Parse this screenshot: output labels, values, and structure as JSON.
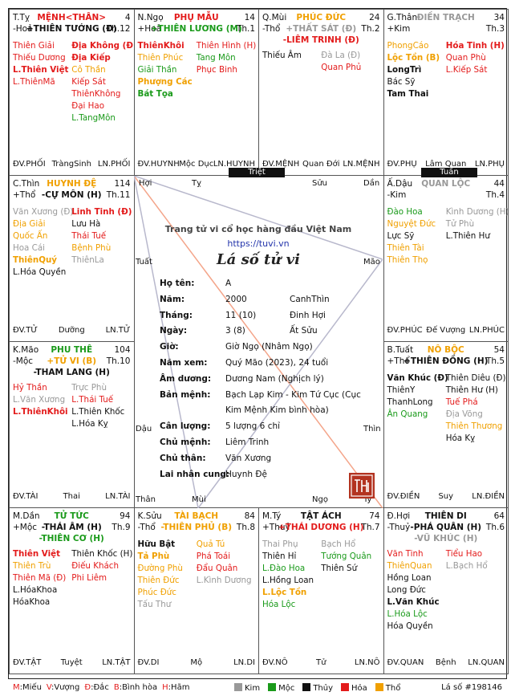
{
  "palaces": [
    {
      "id": "ty",
      "branch": "T.Tỵ",
      "name": "MỆNH<THÂN>",
      "name_color": "red",
      "age": "4",
      "elem": "-Hoả",
      "major": "+THIÊN TƯỚNG (Đ)",
      "major_color": "dark",
      "major2": "",
      "major2_color": "",
      "th": "Th.12",
      "left": [
        {
          "t": "Thiên Giải",
          "c": "red"
        },
        {
          "t": "Thiếu Dương",
          "c": "red"
        },
        {
          "t": "L.Thiên Việt",
          "c": "red",
          "b": true
        },
        {
          "t": "L.ThiênMã",
          "c": "red"
        }
      ],
      "right": [
        {
          "t": "Địa Không (Đ)",
          "c": "red",
          "b": true
        },
        {
          "t": "Địa Kiếp",
          "c": "red",
          "b": true
        },
        {
          "t": "Cô Thần",
          "c": "orange"
        },
        {
          "t": "Kiếp Sát",
          "c": "red"
        },
        {
          "t": "ThiênKhông",
          "c": "red"
        },
        {
          "t": "Đại Hao",
          "c": "red"
        },
        {
          "t": "L.TangMôn",
          "c": "green"
        }
      ],
      "foot_l": "ĐV.PHỐI",
      "foot_c": "TràngSinh",
      "foot_r": "LN.PHỐI"
    },
    {
      "id": "ngo",
      "branch": "N.Ngọ",
      "name": "PHỤ MẪU",
      "name_color": "red",
      "age": "14",
      "elem": "+Hoả",
      "major": "+THIÊN LƯƠNG (M)",
      "major_color": "green",
      "major2": "",
      "major2_color": "",
      "th": "Th.1",
      "left": [
        {
          "t": "ThiênKhôi",
          "c": "red",
          "b": true
        },
        {
          "t": "Thiên Phúc",
          "c": "orange"
        },
        {
          "t": "Giải Thần",
          "c": "green"
        },
        {
          "t": "Phượng Các",
          "c": "orange",
          "b": true
        },
        {
          "t": "Bát Tọa",
          "c": "green",
          "b": true
        }
      ],
      "right": [
        {
          "t": "Thiên Hình (H)",
          "c": "red"
        },
        {
          "t": "Tang Môn",
          "c": "green"
        },
        {
          "t": "Phục Binh",
          "c": "red"
        }
      ],
      "foot_l": "ĐV.HUYNH",
      "foot_c": "Mộc Dục",
      "foot_r": "LN.HUYNH"
    },
    {
      "id": "mui",
      "branch": "Q.Mùi",
      "name": "PHÚC ĐỨC",
      "name_color": "orange",
      "age": "24",
      "elem": "-Thổ",
      "major": "+THẤT SÁT (Đ)",
      "major_color": "gray",
      "major2": "-LIÊM TRINH (Đ)",
      "major2_color": "red",
      "th": "Th.2",
      "left": [
        {
          "t": "Thiếu Âm",
          "c": "dark"
        }
      ],
      "right": [
        {
          "t": "Đà La (Đ)",
          "c": "gray"
        },
        {
          "t": "Quan Phủ",
          "c": "red"
        }
      ],
      "foot_l": "ĐV.MỆNH",
      "foot_c": "Quan Đới",
      "foot_r": "LN.MỆNH"
    },
    {
      "id": "than",
      "branch": "G.Thân",
      "name": "ĐIỀN TRẠCH",
      "name_color": "gray",
      "age": "34",
      "elem": "+Kim",
      "major": "",
      "major_color": "",
      "major2": "",
      "major2_color": "",
      "th": "Th.3",
      "left": [
        {
          "t": "PhongCáo",
          "c": "orange"
        },
        {
          "t": "Lộc Tồn (B)",
          "c": "orange",
          "b": true
        },
        {
          "t": "LongTrì",
          "c": "dark",
          "b": true
        },
        {
          "t": "Bác Sỹ",
          "c": "dark"
        },
        {
          "t": "Tam Thai",
          "c": "dark",
          "b": true
        }
      ],
      "right": [
        {
          "t": "Hóa Tinh (H)",
          "c": "red",
          "b": true
        },
        {
          "t": "Quan Phù",
          "c": "red"
        },
        {
          "t": "L.Kiếp Sát",
          "c": "red"
        }
      ],
      "foot_l": "ĐV.PHỤ",
      "foot_c": "Lâm Quan",
      "foot_r": "LN.PHỤ"
    },
    {
      "id": "thin",
      "branch": "C.Thìn",
      "name": "HUYNH ĐỆ",
      "name_color": "orange",
      "age": "114",
      "elem": "+Thổ",
      "major": "-CỰ MÔN (H)",
      "major_color": "dark",
      "major2": "",
      "major2_color": "",
      "th": "Th.11",
      "left": [
        {
          "t": "Văn Xương (Đ)",
          "c": "gray"
        },
        {
          "t": "Địa Giải",
          "c": "orange"
        },
        {
          "t": "Quốc Ấn",
          "c": "orange"
        },
        {
          "t": "Hoa Cái",
          "c": "gray"
        },
        {
          "t": "ThiênQuý",
          "c": "orange",
          "b": true
        },
        {
          "t": "L.Hóa Quyền",
          "c": "dark"
        }
      ],
      "right": [
        {
          "t": "Linh Tinh (Đ)",
          "c": "red",
          "b": true
        },
        {
          "t": "Lưu Hà",
          "c": "dark"
        },
        {
          "t": "Thái Tuế",
          "c": "red"
        },
        {
          "t": "Bệnh Phù",
          "c": "orange"
        },
        {
          "t": "ThiênLa",
          "c": "gray"
        }
      ],
      "foot_l": "ĐV.TỬ",
      "foot_c": "Dưỡng",
      "foot_r": "LN.TỬ"
    },
    {
      "id": "dau",
      "branch": "Ấ.Dậu",
      "name": "QUAN LỘC",
      "name_color": "gray",
      "age": "44",
      "elem": "-Kim",
      "major": "",
      "major_color": "",
      "major2": "",
      "major2_color": "",
      "th": "Th.4",
      "left": [
        {
          "t": "Đào Hoa",
          "c": "green"
        },
        {
          "t": "Nguyệt Đức",
          "c": "orange"
        },
        {
          "t": "Lực Sỹ",
          "c": "dark"
        },
        {
          "t": "Thiên Tài",
          "c": "orange"
        },
        {
          "t": "Thiên Thọ",
          "c": "orange"
        }
      ],
      "right": [
        {
          "t": "Kình Dương (H)",
          "c": "gray"
        },
        {
          "t": "Tử Phù",
          "c": "gray"
        },
        {
          "t": "L.Thiên Hư",
          "c": "dark"
        }
      ],
      "foot_l": "ĐV.PHÚC",
      "foot_c": "Đế Vượng",
      "foot_r": "LN.PHÚC"
    },
    {
      "id": "mao",
      "branch": "K.Mão",
      "name": "PHU THÊ",
      "name_color": "green",
      "age": "104",
      "elem": "-Mộc",
      "major": "+TỬ VI (B)",
      "major_color": "orange",
      "major2": "-THAM LANG (H)",
      "major2_color": "dark",
      "th": "Th.10",
      "left": [
        {
          "t": "Hỷ Thần",
          "c": "red"
        },
        {
          "t": "L.Văn Xương",
          "c": "gray"
        },
        {
          "t": "L.ThiênKhôi",
          "c": "red",
          "b": true
        }
      ],
      "right": [
        {
          "t": "Trực Phù",
          "c": "gray"
        },
        {
          "t": "L.Thái Tuế",
          "c": "red"
        },
        {
          "t": "L.Thiên Khốc",
          "c": "dark"
        },
        {
          "t": "L.Hóa Kỵ",
          "c": "dark"
        }
      ],
      "foot_l": "ĐV.TÀI",
      "foot_c": "Thai",
      "foot_r": "LN.TÀI"
    },
    {
      "id": "tuat",
      "branch": "B.Tuất",
      "name": "NÔ BỘC",
      "name_color": "orange",
      "age": "54",
      "elem": "+Thổ",
      "major": "+THIÊN ĐỒNG (H)",
      "major_color": "dark",
      "major2": "",
      "major2_color": "",
      "th": "Th.5",
      "left": [
        {
          "t": "Văn Khúc (Đ)",
          "c": "dark",
          "b": true
        },
        {
          "t": "ThiênY",
          "c": "dark"
        },
        {
          "t": "ThanhLong",
          "c": "dark"
        },
        {
          "t": "Ân Quang",
          "c": "green"
        }
      ],
      "right": [
        {
          "t": "Thiên Diêu (Đ)",
          "c": "dark"
        },
        {
          "t": "Thiên Hư (H)",
          "c": "dark"
        },
        {
          "t": "Tuế Phá",
          "c": "red"
        },
        {
          "t": "Địa Võng",
          "c": "gray"
        },
        {
          "t": "Thiên Thương",
          "c": "orange"
        },
        {
          "t": "Hóa Kỵ",
          "c": "dark"
        }
      ],
      "foot_l": "ĐV.ĐIỀN",
      "foot_c": "Suy",
      "foot_r": "LN.ĐIỀN"
    },
    {
      "id": "dan",
      "branch": "M.Dần",
      "name": "TỬ TỨC",
      "name_color": "green",
      "age": "94",
      "elem": "+Mộc",
      "major": "-THÁI ÂM (H)",
      "major_color": "dark",
      "major2": "-THIÊN CƠ (H)",
      "major2_color": "green",
      "th": "Th.9",
      "left": [
        {
          "t": "Thiên Việt",
          "c": "red",
          "b": true
        },
        {
          "t": "Thiên Trù",
          "c": "orange"
        },
        {
          "t": "Thiên Mã (Đ)",
          "c": "red"
        },
        {
          "t": "L.HóaKhoa",
          "c": "dark"
        },
        {
          "t": "HóaKhoa",
          "c": "dark"
        }
      ],
      "right": [
        {
          "t": "Thiên Khốc (H)",
          "c": "dark"
        },
        {
          "t": "Điếu Khách",
          "c": "red"
        },
        {
          "t": "Phi Liêm",
          "c": "red"
        }
      ],
      "foot_l": "ĐV.TẬT",
      "foot_c": "Tuyệt",
      "foot_r": "LN.TẬT"
    },
    {
      "id": "suu",
      "branch": "K.Sửu",
      "name": "TÀI BẠCH",
      "name_color": "orange",
      "age": "84",
      "elem": "-Thổ",
      "major": "-THIÊN PHỦ (B)",
      "major_color": "orange",
      "major2": "",
      "major2_color": "",
      "th": "Th.8",
      "left": [
        {
          "t": "Hữu Bật",
          "c": "dark",
          "b": true
        },
        {
          "t": "Tả Phù",
          "c": "orange",
          "b": true
        },
        {
          "t": "Đường Phù",
          "c": "orange"
        },
        {
          "t": "Thiên Đức",
          "c": "orange"
        },
        {
          "t": "Phúc Đức",
          "c": "orange"
        },
        {
          "t": "Tấu Thư",
          "c": "gray"
        }
      ],
      "right": [
        {
          "t": "Quả Tú",
          "c": "orange"
        },
        {
          "t": "Phá Toái",
          "c": "red"
        },
        {
          "t": "Đẩu Quân",
          "c": "red"
        },
        {
          "t": "L.Kình Dương",
          "c": "gray"
        }
      ],
      "foot_l": "ĐV.DI",
      "foot_c": "Mộ",
      "foot_r": "LN.DI"
    },
    {
      "id": "ty2",
      "branch": "M.Tý",
      "name": "TẬT ÁCH",
      "name_color": "dark",
      "age": "74",
      "elem": "+Thuỷ",
      "major": "+THÁI DƯƠNG (H)",
      "major_color": "red",
      "major2": "",
      "major2_color": "",
      "th": "Th.7",
      "left": [
        {
          "t": "Thai Phụ",
          "c": "gray"
        },
        {
          "t": "Thiên Hỉ",
          "c": "dark"
        },
        {
          "t": "L.Đào Hoa",
          "c": "green"
        },
        {
          "t": "L.Hồng Loan",
          "c": "dark"
        },
        {
          "t": "L.Lộc Tồn",
          "c": "orange",
          "b": true
        },
        {
          "t": "Hóa Lộc",
          "c": "green"
        }
      ],
      "right": [
        {
          "t": "Bạch Hổ",
          "c": "gray"
        },
        {
          "t": "Tướng Quân",
          "c": "green"
        },
        {
          "t": "Thiên Sứ",
          "c": "dark"
        }
      ],
      "foot_l": "ĐV.NÔ",
      "foot_c": "Tử",
      "foot_r": "LN.NÔ"
    },
    {
      "id": "hoi",
      "branch": "Đ.Hợi",
      "name": "THIÊN DI",
      "name_color": "dark",
      "age": "64",
      "elem": "-Thuỷ",
      "major": "-PHÁ QUÂN (H)",
      "major_color": "dark",
      "major2": "-VŨ KHÚC (H)",
      "major2_color": "gray",
      "th": "Th.6",
      "left": [
        {
          "t": "Văn Tinh",
          "c": "red"
        },
        {
          "t": "ThiênQuan",
          "c": "orange"
        },
        {
          "t": "Hồng Loan",
          "c": "dark"
        },
        {
          "t": "Long Đức",
          "c": "dark"
        },
        {
          "t": "L.Văn Khúc",
          "c": "dark",
          "b": true
        },
        {
          "t": "L.Hóa Lộc",
          "c": "green"
        },
        {
          "t": "Hóa Quyền",
          "c": "dark"
        }
      ],
      "right": [
        {
          "t": "Tiểu Hao",
          "c": "red"
        },
        {
          "t": "L.Bạch Hổ",
          "c": "gray"
        }
      ],
      "foot_l": "ĐV.QUAN",
      "foot_c": "Bệnh",
      "foot_r": "LN.QUAN"
    }
  ],
  "tags": {
    "triet": "Triệt",
    "tuan": "Tuần"
  },
  "corners": {
    "hoi": "Hợi",
    "ty": "Tý",
    "suu": "Sửu",
    "dan": "Dần",
    "tuat": "Tuất",
    "mao": "Mão",
    "dau": "Dậu",
    "thin": "Thìn",
    "than": "Thân",
    "mui": "Mùi",
    "ngo": "Ngọ",
    "ty2": "Tỵ"
  },
  "center": {
    "site_title": "Trang tử vi cổ học hàng đầu Việt Nam",
    "url": "https://tuvi.vn",
    "heading": "Lá số tử vi",
    "rows": [
      {
        "k": "Họ tên:",
        "v": "A",
        "v2": ""
      },
      {
        "k": "Năm:",
        "v": "2000",
        "v2": "CanhThìn"
      },
      {
        "k": "Tháng:",
        "v": "11 (10)",
        "v2": "Đinh Hợi"
      },
      {
        "k": "Ngày:",
        "v": "3 (8)",
        "v2": "Ất Sửu"
      },
      {
        "k": "Giờ:",
        "v": "Giờ Ngọ (Nhâm Ngọ)",
        "v2": ""
      },
      {
        "k": "Năm xem:",
        "v": "Quý Mão (2023), 24 tuổi",
        "v2": ""
      },
      {
        "k": "Âm dương:",
        "v": "Dương Nam (Nghịch lý)",
        "v2": ""
      },
      {
        "k": "Bản mệnh:",
        "v": "Bạch Lạp Kim - Kim Tứ Cục (Cục",
        "v2": ""
      },
      {
        "k": "",
        "v": "Kim Mệnh Kim bình hòa)",
        "v2": ""
      },
      {
        "k": "Cân lượng:",
        "v": "5 lượng 6 chỉ",
        "v2": ""
      },
      {
        "k": "Chủ mệnh:",
        "v": "Liêm Trinh",
        "v2": ""
      },
      {
        "k": "Chủ thân:",
        "v": "Văn Xương",
        "v2": ""
      },
      {
        "k": "Lai nhân cung:",
        "v": "Huynh Đệ",
        "v2": ""
      }
    ],
    "seal": "TVN"
  },
  "legend": {
    "codes": [
      {
        "k": "M",
        "t": "Miếu"
      },
      {
        "k": "V",
        "t": "Vượng"
      },
      {
        "k": "Đ",
        "t": "Đắc"
      },
      {
        "k": "B",
        "t": "Bình hòa"
      },
      {
        "k": "H",
        "t": "Hãm"
      }
    ],
    "elements": [
      {
        "t": "Kim",
        "c": "#999999"
      },
      {
        "t": "Mộc",
        "c": "#1a9a1a"
      },
      {
        "t": "Thủy",
        "c": "#111111"
      },
      {
        "t": "Hỏa",
        "c": "#e31b1b"
      },
      {
        "t": "Thổ",
        "c": "#f0a000"
      }
    ],
    "chart_no": "Lá số #198146"
  },
  "colors": {
    "red": "#e31b1b",
    "orange": "#f0a000",
    "green": "#1a9a1a",
    "gray": "#999999",
    "dark": "#111111"
  }
}
